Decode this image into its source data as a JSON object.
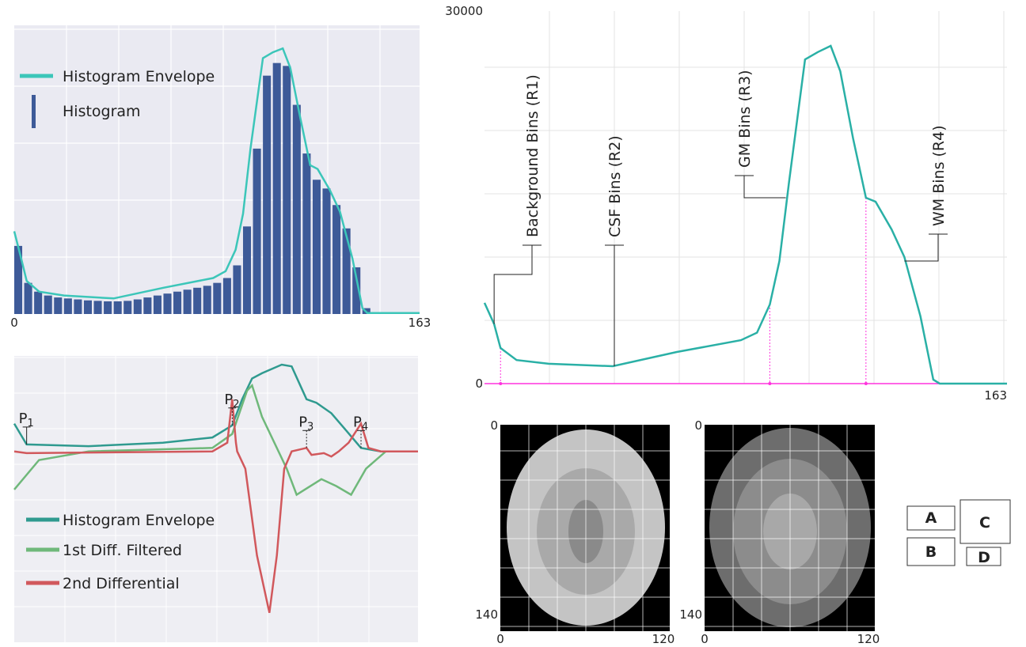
{
  "chart_data": [
    {
      "type": "bar",
      "xlim": [
        0,
        163
      ],
      "ylim": [
        0,
        30000
      ],
      "xticks": [
        0,
        163
      ],
      "grid": true,
      "legend": "upper left",
      "series": [
        {
          "name": "Histogram Envelope",
          "type": "line",
          "color": "#3cc6b9",
          "x": [
            0,
            3,
            5,
            10,
            20,
            40,
            60,
            80,
            85,
            89,
            92,
            95,
            100,
            104,
            108,
            111,
            115,
            119,
            122,
            127,
            131,
            136,
            140,
            142,
            163
          ],
          "values": [
            8500,
            5500,
            3400,
            2300,
            1900,
            1600,
            2700,
            3700,
            4400,
            6600,
            10300,
            17000,
            26300,
            26900,
            27300,
            25300,
            20200,
            15300,
            14900,
            12700,
            10500,
            5700,
            600,
            100,
            100
          ]
        },
        {
          "name": "Histogram",
          "type": "bar",
          "color": "#3d5a98",
          "x": [
            0,
            4,
            8,
            12,
            16,
            20,
            24,
            28,
            32,
            36,
            40,
            44,
            48,
            52,
            56,
            60,
            64,
            68,
            72,
            76,
            80,
            84,
            88,
            92,
            96,
            100,
            104,
            108,
            112,
            116,
            120,
            124,
            128,
            132,
            136,
            140,
            144,
            148,
            152,
            156,
            160
          ],
          "values": [
            7000,
            3200,
            2300,
            1900,
            1700,
            1600,
            1500,
            1400,
            1350,
            1300,
            1300,
            1350,
            1500,
            1700,
            1900,
            2100,
            2300,
            2500,
            2700,
            2900,
            3200,
            3700,
            5000,
            9000,
            17000,
            24500,
            25800,
            25500,
            21500,
            16500,
            13800,
            12900,
            11200,
            8800,
            4800,
            600,
            0,
            0,
            0,
            0,
            0
          ]
        }
      ]
    },
    {
      "type": "line",
      "xlim": [
        0,
        163
      ],
      "ylim": [
        -1.1,
        0.55
      ],
      "grid": true,
      "legend": "lower left",
      "series": [
        {
          "name": "Histogram Envelope",
          "color": "#2f9a8f",
          "x": [
            0,
            5,
            30,
            60,
            80,
            88,
            92,
            96,
            100,
            108,
            112,
            118,
            122,
            128,
            134,
            140,
            148,
            163
          ],
          "values": [
            0.16,
            0.04,
            0.03,
            0.05,
            0.08,
            0.15,
            0.3,
            0.42,
            0.45,
            0.5,
            0.49,
            0.3,
            0.28,
            0.22,
            0.12,
            0.02,
            0,
            0
          ]
        },
        {
          "name": "1st Diff. Filtered",
          "color": "#6fb87a",
          "x": [
            0,
            10,
            30,
            80,
            88,
            94,
            96,
            100,
            110,
            114,
            124,
            130,
            136,
            142,
            150,
            163
          ],
          "values": [
            -0.22,
            -0.05,
            0,
            0.02,
            0.1,
            0.35,
            0.38,
            0.2,
            -0.1,
            -0.25,
            -0.16,
            -0.2,
            -0.25,
            -0.1,
            0,
            0
          ]
        },
        {
          "name": "2nd Differential",
          "color": "#d1585c",
          "x": [
            0,
            5,
            80,
            86,
            88,
            89.5,
            90,
            93.3,
            98,
            103,
            106,
            109,
            112,
            118,
            120,
            125,
            128,
            131,
            135,
            140,
            143,
            148,
            163
          ],
          "values": [
            0,
            -0.01,
            0,
            0.05,
            0.3,
            0.05,
            0,
            -0.1,
            -0.6,
            -0.93,
            -0.6,
            -0.1,
            0,
            0.02,
            -0.02,
            -0.01,
            -0.03,
            0,
            0.05,
            0.16,
            0.02,
            0,
            0
          ]
        }
      ],
      "annotations": [
        {
          "text": "P",
          "sub": "1",
          "x": 5,
          "y": 0.04
        },
        {
          "text": "P",
          "sub": "2",
          "x": 88,
          "y": 0.15
        },
        {
          "text": "P",
          "sub": "3",
          "x": 118,
          "y": 0.02
        },
        {
          "text": "P",
          "sub": "4",
          "x": 140,
          "y": 0.02
        }
      ]
    },
    {
      "type": "line",
      "xlim": [
        0,
        163
      ],
      "ylim": [
        0,
        30000
      ],
      "xticks": [
        163
      ],
      "yticks": [
        0,
        30000
      ],
      "grid": true,
      "series": [
        {
          "name": "Histogram Envelope",
          "color": "#2ab0a6",
          "x": [
            0,
            3,
            5,
            10,
            20,
            40,
            60,
            80,
            85,
            89,
            92,
            95,
            100,
            104,
            108,
            111,
            115,
            119,
            122,
            127,
            131,
            136,
            140,
            142,
            163
          ],
          "values": [
            6500,
            4800,
            2870,
            1900,
            1600,
            1400,
            2550,
            3500,
            4100,
            6370,
            9870,
            16240,
            26100,
            26700,
            27200,
            25150,
            19740,
            14970,
            14650,
            12420,
            10190,
            5410,
            320,
            0,
            0
          ]
        }
      ],
      "regions": [
        {
          "label": "Background Bins (R1)",
          "x": 3
        },
        {
          "label": "CSF Bins (R2)",
          "x": 40
        },
        {
          "label": "GM Bins (R3)",
          "x": 94
        },
        {
          "label": "WM Bins (R4)",
          "x": 131
        }
      ],
      "boundaries": {
        "color": "#ff33dd",
        "x": [
          5,
          89,
          119
        ]
      }
    }
  ],
  "images": [
    {
      "xticks": [
        0,
        120
      ],
      "yticks": [
        0,
        140
      ]
    },
    {
      "xticks": [
        0,
        120
      ],
      "yticks": [
        0,
        140
      ]
    }
  ],
  "boxes": [
    "A",
    "B",
    "C",
    "D"
  ]
}
